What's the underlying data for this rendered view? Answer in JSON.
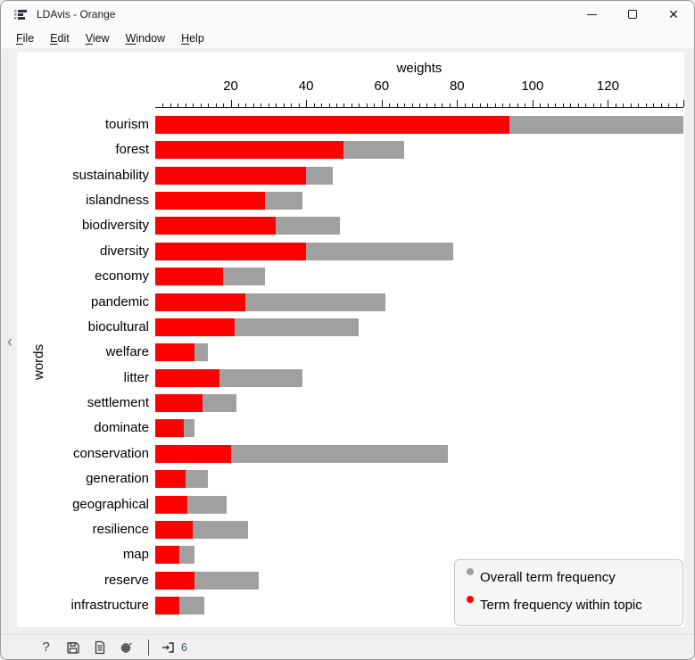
{
  "window": {
    "title": "LDAvis - Orange"
  },
  "menu": {
    "items": [
      {
        "label": "File",
        "hotkey": "F",
        "rest": "ile"
      },
      {
        "label": "Edit",
        "hotkey": "E",
        "rest": "dit"
      },
      {
        "label": "View",
        "hotkey": "V",
        "rest": "iew"
      },
      {
        "label": "Window",
        "hotkey": "W",
        "rest": "indow"
      },
      {
        "label": "Help",
        "hotkey": "H",
        "rest": "elp"
      }
    ]
  },
  "chart_data": {
    "type": "bar",
    "orientation": "horizontal",
    "xlabel": "weights",
    "ylabel": "words",
    "grid": false,
    "legend_position": "bottom-right",
    "categories": [
      "tourism",
      "forest",
      "sustainability",
      "islandness",
      "biodiversity",
      "diversity",
      "economy",
      "pandemic",
      "biocultural",
      "welfare",
      "litter",
      "settlement",
      "dominate",
      "conservation",
      "generation",
      "geographical",
      "resilience",
      "map",
      "reserve",
      "infrastructure"
    ],
    "series": [
      {
        "name": "Overall term frequency",
        "color": "#a0a0a0",
        "values": [
          140,
          66,
          47,
          39,
          49,
          79,
          29,
          61,
          54,
          14,
          39,
          21.5,
          10.5,
          77.5,
          14,
          19,
          24.5,
          10.5,
          27.5,
          13
        ]
      },
      {
        "name": "Term frequency within topic",
        "color": "#ff0000",
        "values": [
          94,
          50,
          40,
          29,
          32,
          40,
          18,
          24,
          21,
          10.5,
          17,
          12.5,
          7.5,
          20,
          8,
          8.5,
          10,
          6.5,
          10.5,
          6.5
        ]
      }
    ],
    "axis": {
      "min": 0,
      "max": 140,
      "major_step": 20,
      "minor_step": 2,
      "tick_labels": [
        20,
        40,
        60,
        80,
        100,
        120
      ]
    }
  },
  "legend": {
    "entries": [
      {
        "label": "Overall term frequency",
        "color": "#a0a0a0"
      },
      {
        "label": "Term frequency within topic",
        "color": "#ff0000"
      }
    ]
  },
  "statusbar": {
    "input_count": "6"
  },
  "icons": {
    "collapse": "‹",
    "help": "?",
    "close": "✕"
  },
  "colors": {
    "bar_red": "#ff0000",
    "bar_gray": "#a0a0a0",
    "count_text": "#3a5570"
  }
}
